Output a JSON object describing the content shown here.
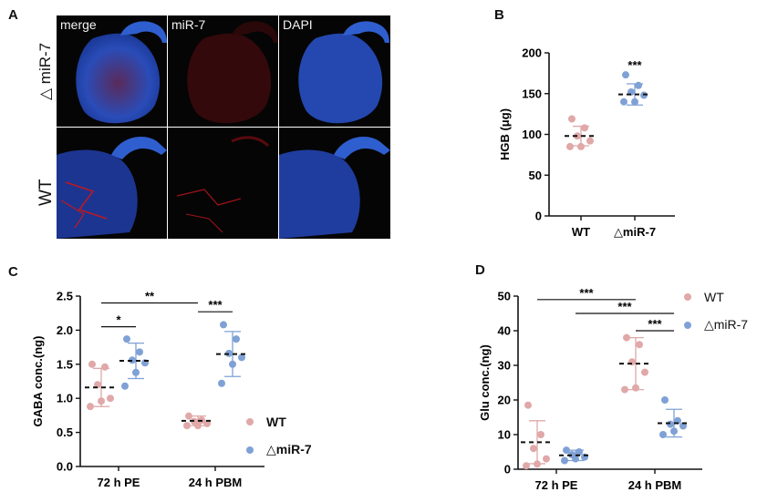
{
  "panels": {
    "a": "A",
    "b": "B",
    "c": "C",
    "d": "D"
  },
  "panel_a": {
    "columns": [
      "merge",
      "miR-7",
      "DAPI"
    ],
    "rows": [
      "△ miR-7",
      "WT"
    ]
  },
  "colors": {
    "wt": "#e0a8a8",
    "mir7": "#7fa1d6",
    "dapi": "#2c57c8",
    "mir7_signal": "#b0161c"
  },
  "chart_data": [
    {
      "id": "B",
      "type": "scatter",
      "categories": [
        "WT",
        "△miR-7"
      ],
      "ylabel": "HGB (μg)",
      "ylim": [
        0,
        200
      ],
      "yticks": [
        "0",
        "50",
        "100",
        "150",
        "200"
      ],
      "series": [
        {
          "name": "WT",
          "color": "#e0a8a8",
          "points": [
            119,
            108,
            98,
            92,
            85,
            85
          ],
          "mean": 98,
          "sd": 12
        },
        {
          "name": "△miR-7",
          "color": "#7fa1d6",
          "points": [
            173,
            160,
            152,
            148,
            140,
            140
          ],
          "mean": 149,
          "sd": 13
        }
      ],
      "annotations": [
        {
          "text": "***",
          "category": 1,
          "y": 180
        }
      ]
    },
    {
      "id": "C",
      "type": "scatter",
      "categories": [
        "72 h PE",
        "24 h PBM"
      ],
      "ylabel": "GABA conc.(ng)",
      "ylim": [
        0,
        2.5
      ],
      "yticks": [
        "0.0",
        "0.5",
        "1.0",
        "1.5",
        "2.0",
        "2.5"
      ],
      "legend": [
        {
          "name": "WT",
          "color": "#e0a8a8"
        },
        {
          "name": "△miR-7",
          "color": "#7fa1d6"
        }
      ],
      "series": [
        {
          "name": "WT",
          "color": "#e0a8a8",
          "groups": [
            {
              "category": 0,
              "points": [
                1.5,
                1.46,
                1.2,
                1.0,
                0.96,
                0.88
              ],
              "mean": 1.16,
              "sd": 0.28
            },
            {
              "category": 1,
              "points": [
                0.74,
                0.68,
                0.66,
                0.63,
                0.6,
                0.6
              ],
              "mean": 0.67,
              "sd": 0.07
            }
          ]
        },
        {
          "name": "△miR-7",
          "color": "#7fa1d6",
          "groups": [
            {
              "category": 0,
              "points": [
                1.87,
                1.68,
                1.56,
                1.52,
                1.38,
                1.18
              ],
              "mean": 1.55,
              "sd": 0.26
            },
            {
              "category": 1,
              "points": [
                2.08,
                1.87,
                1.66,
                1.6,
                1.5,
                1.22
              ],
              "mean": 1.65,
              "sd": 0.33
            }
          ]
        }
      ],
      "brackets": [
        {
          "from": [
            0,
            0
          ],
          "to": [
            0,
            1
          ],
          "y": 2.05,
          "text": "*"
        },
        {
          "from": [
            0,
            0
          ],
          "to": [
            1,
            0
          ],
          "y": 2.4,
          "text": "**"
        },
        {
          "from": [
            1,
            0
          ],
          "to": [
            1,
            1
          ],
          "y": 2.27,
          "text": "***"
        }
      ]
    },
    {
      "id": "D",
      "type": "scatter",
      "categories": [
        "72 h PE",
        "24 h PBM"
      ],
      "ylabel": "Glu conc.(ng)",
      "ylim": [
        0,
        50
      ],
      "yticks": [
        "0",
        "10",
        "20",
        "30",
        "40",
        "50"
      ],
      "legend": [
        {
          "name": "WT",
          "color": "#e0a8a8"
        },
        {
          "name": "△miR-7",
          "color": "#7fa1d6"
        }
      ],
      "series": [
        {
          "name": "WT",
          "color": "#e0a8a8",
          "groups": [
            {
              "category": 0,
              "points": [
                18.5,
                10,
                6,
                3,
                1.5,
                1
              ],
              "mean": 7.8,
              "sd": 6.2
            },
            {
              "category": 1,
              "points": [
                38,
                36,
                31,
                28,
                23.5,
                23
              ],
              "mean": 30.5,
              "sd": 7.5
            }
          ]
        },
        {
          "name": "△miR-7",
          "color": "#7fa1d6",
          "groups": [
            {
              "category": 0,
              "points": [
                5.5,
                5,
                4.2,
                3.5,
                3,
                2.5
              ],
              "mean": 4,
              "sd": 1.5
            },
            {
              "category": 1,
              "points": [
                20,
                14,
                13,
                12.5,
                11,
                10
              ],
              "mean": 13.3,
              "sd": 4
            }
          ]
        }
      ],
      "brackets": [
        {
          "from": [
            0,
            0
          ],
          "to": [
            1,
            0
          ],
          "y": 49,
          "text": "***"
        },
        {
          "from": [
            0,
            1
          ],
          "to": [
            1,
            1
          ],
          "y": 45,
          "text": "***"
        },
        {
          "from": [
            1,
            0
          ],
          "to": [
            1,
            1
          ],
          "y": 40,
          "text": "***"
        }
      ]
    }
  ]
}
